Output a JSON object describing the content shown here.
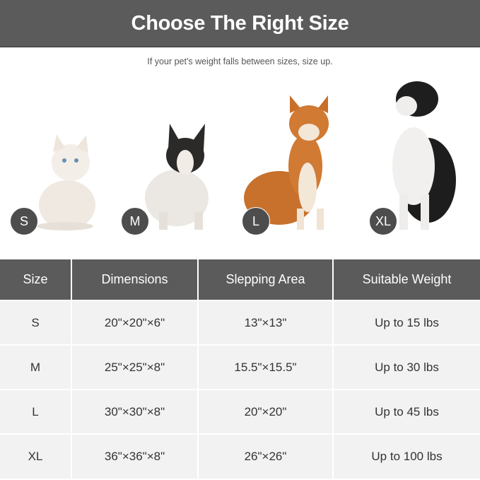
{
  "header": {
    "title": "Choose The Right Size"
  },
  "subtitle": "If your pet's weight falls between sizes, size up.",
  "pets": [
    {
      "badge": "S",
      "animal": "cat"
    },
    {
      "badge": "M",
      "animal": "french bulldog"
    },
    {
      "badge": "L",
      "animal": "shiba inu"
    },
    {
      "badge": "XL",
      "animal": "border collie"
    }
  ],
  "table": {
    "columns": [
      "Size",
      "Dimensions",
      "Slepping Area",
      "Suitable Weight"
    ],
    "rows": [
      [
        "S",
        "20\"×20\"×6\"",
        "13\"×13\"",
        "Up to 15 lbs"
      ],
      [
        "M",
        "25\"×25\"×8\"",
        "15.5\"×15.5\"",
        "Up to 30 lbs"
      ],
      [
        "L",
        "30\"×30\"×8\"",
        "20\"×20\"",
        "Up to 45 lbs"
      ],
      [
        "XL",
        "36\"×36\"×8\"",
        "26\"×26\"",
        "Up to 100 lbs"
      ]
    ]
  }
}
